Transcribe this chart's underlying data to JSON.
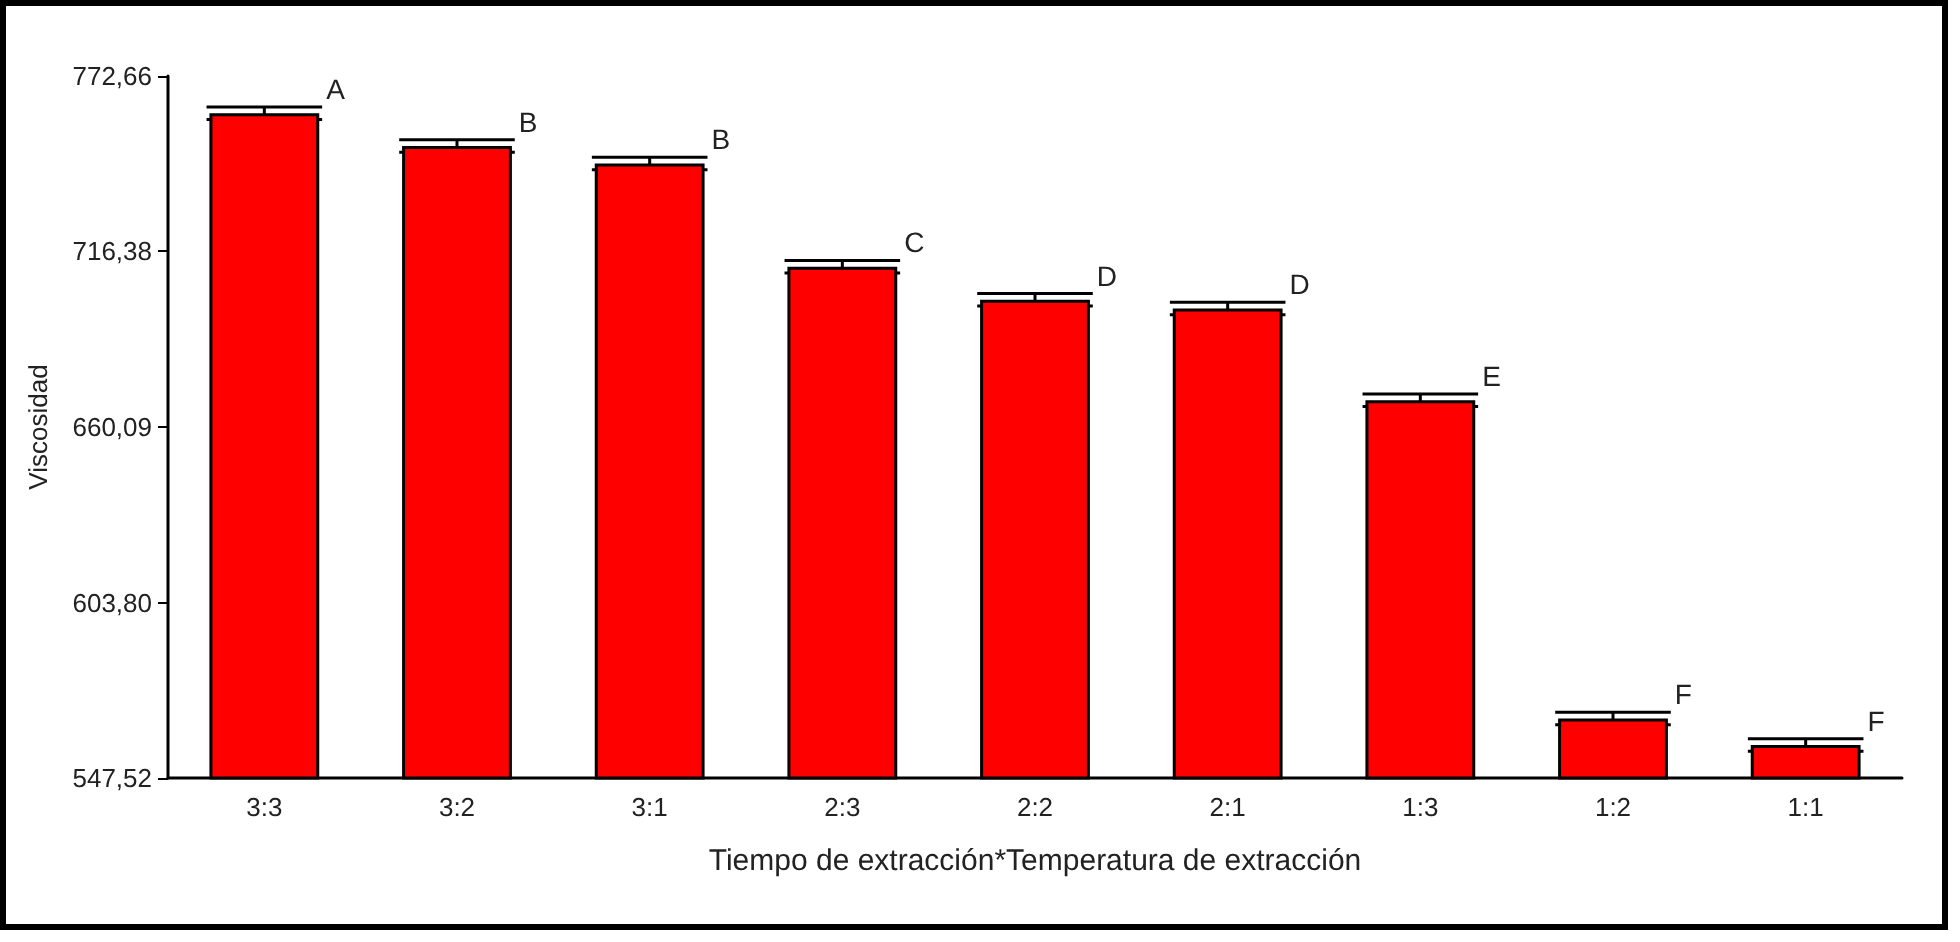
{
  "chart_data": {
    "type": "bar",
    "xlabel": "Tiempo de extracción*Temperatura de extracción",
    "ylabel": "Viscosidad",
    "categories": [
      "3:3",
      "3:2",
      "3:1",
      "2:3",
      "2:2",
      "2:1",
      "1:3",
      "1:2",
      "1:1"
    ],
    "values": [
      760.7,
      750.2,
      744.6,
      711.5,
      700.9,
      698.1,
      668.7,
      566.6,
      558.1
    ],
    "errors": [
      2,
      2,
      2,
      2,
      2,
      2,
      2,
      2,
      2
    ],
    "color": "#ff0000",
    "ylim": [
      547.52,
      772.66
    ],
    "yticks": [
      {
        "value": 547.52,
        "label": "547,52"
      },
      {
        "value": 603.8,
        "label": "603,80"
      },
      {
        "value": 660.09,
        "label": "660,09"
      },
      {
        "value": 716.38,
        "label": "716,38"
      },
      {
        "value": 772.66,
        "label": "772,66"
      }
    ],
    "grid": false,
    "annotations": [
      {
        "text": "A",
        "x": "3:3",
        "y": 762.7
      },
      {
        "text": "B",
        "x": "3:2",
        "y": 752.2
      },
      {
        "text": "B",
        "x": "3:1",
        "y": 746.6
      },
      {
        "text": "C",
        "x": "2:3",
        "y": 713.5
      },
      {
        "text": "D",
        "x": "2:2",
        "y": 702.9
      },
      {
        "text": "D",
        "x": "2:1",
        "y": 700.1
      },
      {
        "text": "E",
        "x": "1:3",
        "y": 670.7
      },
      {
        "text": "F",
        "x": "1:2",
        "y": 568.6
      },
      {
        "text": "F",
        "x": "1:1",
        "y": 560.1
      }
    ]
  }
}
